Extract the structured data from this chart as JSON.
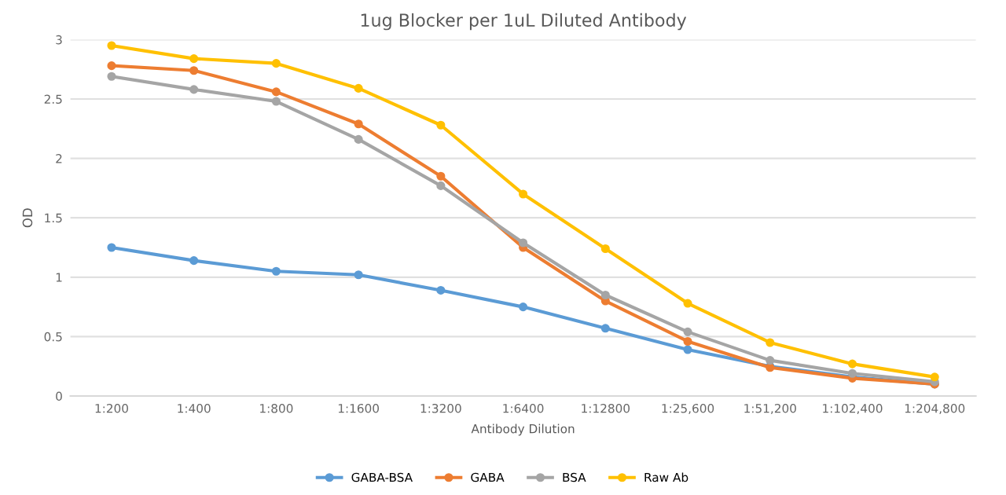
{
  "chart_data": {
    "type": "line",
    "title": "1ug Blocker per 1uL Diluted Antibody",
    "xlabel": "Antibody Dilution",
    "ylabel": "OD",
    "categories": [
      "1:200",
      "1:400",
      "1:800",
      "1:1600",
      "1:3200",
      "1:6400",
      "1:12800",
      "1:25,600",
      "1:51,200",
      "1:102,400",
      "1:204,800"
    ],
    "series": [
      {
        "name": "GABA-BSA",
        "color": "#5b9bd5",
        "values": [
          1.25,
          1.14,
          1.05,
          1.02,
          0.89,
          0.75,
          0.57,
          0.39,
          0.25,
          0.16,
          0.1
        ]
      },
      {
        "name": "GABA",
        "color": "#ed7d31",
        "values": [
          2.78,
          2.74,
          2.56,
          2.29,
          1.85,
          1.25,
          0.8,
          0.46,
          0.24,
          0.15,
          0.1
        ]
      },
      {
        "name": "BSA",
        "color": "#a5a5a5",
        "values": [
          2.69,
          2.58,
          2.48,
          2.16,
          1.77,
          1.29,
          0.85,
          0.54,
          0.3,
          0.19,
          0.12
        ]
      },
      {
        "name": "Raw Ab",
        "color": "#ffc000",
        "values": [
          2.95,
          2.84,
          2.8,
          2.59,
          2.28,
          1.7,
          1.24,
          0.78,
          0.45,
          0.27,
          0.16
        ]
      }
    ],
    "ylim": [
      0,
      3
    ],
    "yticks": [
      0,
      0.5,
      1,
      1.5,
      2,
      2.5,
      3
    ],
    "grid": "y",
    "legend": "bottom",
    "marker": "circle",
    "line_style": "solid"
  }
}
